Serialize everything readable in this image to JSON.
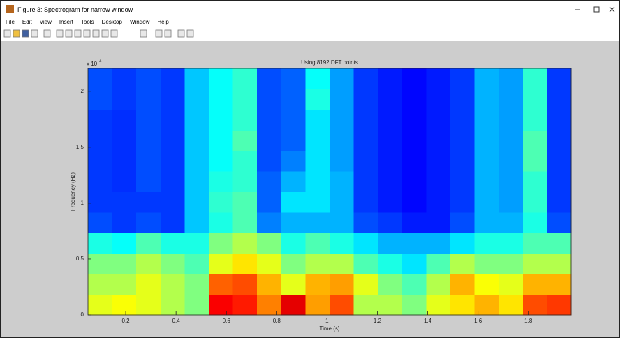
{
  "window": {
    "title": "Figure 3: Spectrogram for narrow window",
    "menu": [
      "File",
      "Edit",
      "View",
      "Insert",
      "Tools",
      "Desktop",
      "Window",
      "Help"
    ]
  },
  "chart_data": {
    "type": "heatmap",
    "title": "Using 8192 DFT points",
    "xlabel": "Time (s)",
    "ylabel": "Frequency (Hz)",
    "y_multiplier": {
      "base": "x 10",
      "exponent": "4"
    },
    "xlim": [
      0.05,
      1.97
    ],
    "xticks": [
      0.2,
      0.4,
      0.6,
      0.8,
      1,
      1.2,
      1.4,
      1.6,
      1.8
    ],
    "ylim": [
      0,
      22050
    ],
    "yticks": [
      0,
      {
        "value": 5000,
        "label": "0.5"
      },
      {
        "value": 10000,
        "label": "1"
      },
      {
        "value": 15000,
        "label": "1.5"
      },
      {
        "value": 20000,
        "label": "2"
      }
    ],
    "colormap": "jet",
    "clim": [
      0,
      1
    ],
    "z": [
      [
        0.6,
        0.55,
        0.5,
        0.4,
        0.2,
        0.18,
        0.18,
        0.18,
        0.18,
        0.18,
        0.2,
        0.2
      ],
      [
        0.62,
        0.55,
        0.5,
        0.38,
        0.18,
        0.18,
        0.17,
        0.17,
        0.17,
        0.17,
        0.18,
        0.18
      ],
      [
        0.6,
        0.6,
        0.55,
        0.45,
        0.2,
        0.18,
        0.2,
        0.2,
        0.2,
        0.2,
        0.2,
        0.2
      ],
      [
        0.55,
        0.55,
        0.5,
        0.4,
        0.18,
        0.18,
        0.18,
        0.18,
        0.18,
        0.18,
        0.18,
        0.18
      ],
      [
        0.5,
        0.5,
        0.45,
        0.4,
        0.32,
        0.32,
        0.32,
        0.32,
        0.32,
        0.32,
        0.32,
        0.32
      ],
      [
        0.88,
        0.78,
        0.6,
        0.5,
        0.4,
        0.42,
        0.4,
        0.38,
        0.38,
        0.38,
        0.38,
        0.38
      ],
      [
        0.85,
        0.8,
        0.65,
        0.55,
        0.45,
        0.45,
        0.42,
        0.42,
        0.45,
        0.42,
        0.42,
        0.42
      ],
      [
        0.75,
        0.7,
        0.6,
        0.5,
        0.25,
        0.22,
        0.22,
        0.2,
        0.2,
        0.2,
        0.2,
        0.2
      ],
      [
        0.9,
        0.6,
        0.5,
        0.4,
        0.3,
        0.35,
        0.3,
        0.25,
        0.22,
        0.22,
        0.22,
        0.22
      ],
      [
        0.72,
        0.7,
        0.55,
        0.45,
        0.3,
        0.35,
        0.35,
        0.35,
        0.35,
        0.35,
        0.4,
        0.38
      ],
      [
        0.8,
        0.72,
        0.55,
        0.4,
        0.3,
        0.3,
        0.3,
        0.28,
        0.28,
        0.28,
        0.28,
        0.28
      ],
      [
        0.55,
        0.6,
        0.45,
        0.35,
        0.2,
        0.18,
        0.18,
        0.18,
        0.18,
        0.18,
        0.18,
        0.18
      ],
      [
        0.55,
        0.5,
        0.4,
        0.3,
        0.18,
        0.15,
        0.15,
        0.15,
        0.15,
        0.15,
        0.15,
        0.15
      ],
      [
        0.5,
        0.45,
        0.35,
        0.3,
        0.15,
        0.13,
        0.13,
        0.13,
        0.13,
        0.13,
        0.13,
        0.13
      ],
      [
        0.6,
        0.55,
        0.45,
        0.3,
        0.15,
        0.15,
        0.15,
        0.15,
        0.15,
        0.15,
        0.15,
        0.15
      ],
      [
        0.65,
        0.7,
        0.55,
        0.35,
        0.2,
        0.18,
        0.18,
        0.18,
        0.18,
        0.18,
        0.18,
        0.18
      ],
      [
        0.7,
        0.62,
        0.5,
        0.4,
        0.3,
        0.3,
        0.3,
        0.3,
        0.3,
        0.3,
        0.3,
        0.3
      ],
      [
        0.65,
        0.6,
        0.5,
        0.4,
        0.3,
        0.28,
        0.28,
        0.28,
        0.28,
        0.28,
        0.28,
        0.28
      ],
      [
        0.8,
        0.7,
        0.55,
        0.45,
        0.4,
        0.42,
        0.42,
        0.45,
        0.45,
        0.42,
        0.42,
        0.42
      ],
      [
        0.82,
        0.7,
        0.55,
        0.45,
        0.2,
        0.18,
        0.18,
        0.18,
        0.18,
        0.18,
        0.18,
        0.18
      ]
    ]
  }
}
